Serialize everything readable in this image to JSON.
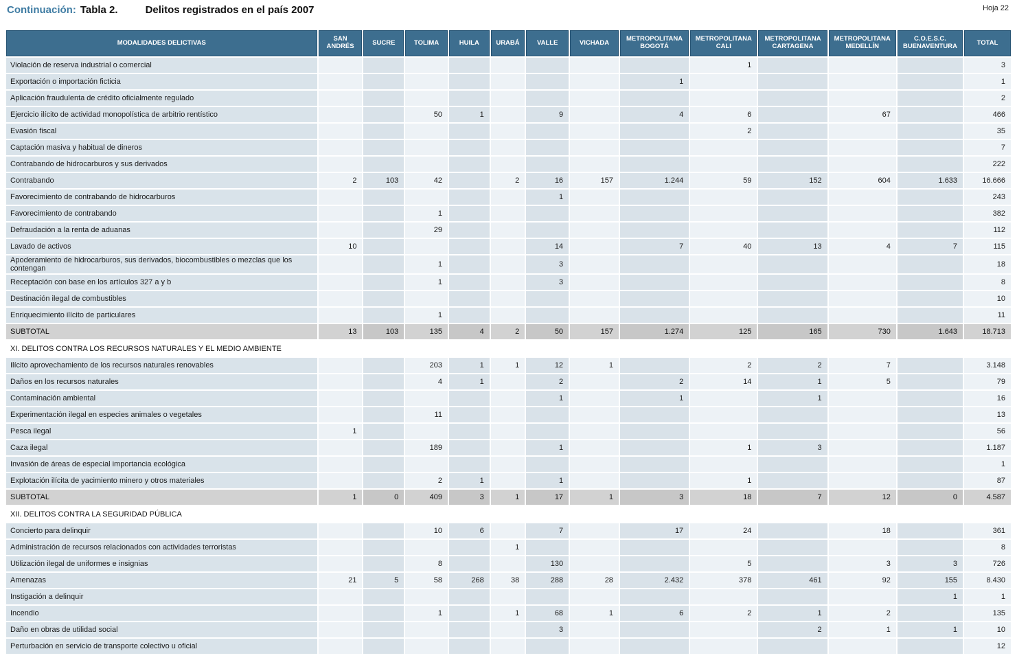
{
  "page": {
    "continuation_label": "Continuación:",
    "table_number": "Tabla 2.",
    "title": "Delitos registrados en el país 2007",
    "sheet": "Hoja 22"
  },
  "table": {
    "first_header": "MODALIDADES DELICTIVAS",
    "columns": [
      "SAN ANDRÉS",
      "SUCRE",
      "TOLIMA",
      "HUILA",
      "URABÁ",
      "VALLE",
      "VICHADA",
      "METROPOLITANA BOGOTÁ",
      "METROPOLITANA CALI",
      "METROPOLITANA CARTAGENA",
      "METROPOLITANA MEDELLÍN",
      "C.O.E.S.C. BUENAVENTURA",
      "TOTAL"
    ],
    "rows": [
      {
        "type": "data",
        "label": "Violación de reserva industrial o comercial",
        "values": [
          "",
          "",
          "",
          "",
          "",
          "",
          "",
          "",
          "1",
          "",
          "",
          "",
          "3"
        ]
      },
      {
        "type": "data",
        "label": "Exportación o importación ficticia",
        "values": [
          "",
          "",
          "",
          "",
          "",
          "",
          "",
          "1",
          "",
          "",
          "",
          "",
          "1"
        ]
      },
      {
        "type": "data",
        "label": "Aplicación fraudulenta de crédito oficialmente regulado",
        "values": [
          "",
          "",
          "",
          "",
          "",
          "",
          "",
          "",
          "",
          "",
          "",
          "",
          "2"
        ]
      },
      {
        "type": "data",
        "label": "Ejercicio ilícito de actividad monopolística de arbitrio rentístico",
        "values": [
          "",
          "",
          "50",
          "1",
          "",
          "9",
          "",
          "4",
          "6",
          "",
          "67",
          "",
          "466"
        ]
      },
      {
        "type": "data",
        "label": "Evasión fiscal",
        "values": [
          "",
          "",
          "",
          "",
          "",
          "",
          "",
          "",
          "2",
          "",
          "",
          "",
          "35"
        ]
      },
      {
        "type": "data",
        "label": "Captación masiva y habitual de dineros",
        "values": [
          "",
          "",
          "",
          "",
          "",
          "",
          "",
          "",
          "",
          "",
          "",
          "",
          "7"
        ]
      },
      {
        "type": "data",
        "label": "Contrabando de hidrocarburos y sus derivados",
        "values": [
          "",
          "",
          "",
          "",
          "",
          "",
          "",
          "",
          "",
          "",
          "",
          "",
          "222"
        ]
      },
      {
        "type": "data",
        "label": "Contrabando",
        "values": [
          "2",
          "103",
          "42",
          "",
          "2",
          "16",
          "157",
          "1.244",
          "59",
          "152",
          "604",
          "1.633",
          "16.666"
        ]
      },
      {
        "type": "data",
        "label": "Favorecimiento de contrabando de hidrocarburos",
        "values": [
          "",
          "",
          "",
          "",
          "",
          "1",
          "",
          "",
          "",
          "",
          "",
          "",
          "243"
        ]
      },
      {
        "type": "data",
        "label": "Favorecimiento de contrabando",
        "values": [
          "",
          "",
          "1",
          "",
          "",
          "",
          "",
          "",
          "",
          "",
          "",
          "",
          "382"
        ]
      },
      {
        "type": "data",
        "label": "Defraudación a la renta de aduanas",
        "values": [
          "",
          "",
          "29",
          "",
          "",
          "",
          "",
          "",
          "",
          "",
          "",
          "",
          "112"
        ]
      },
      {
        "type": "data",
        "label": "Lavado de activos",
        "values": [
          "10",
          "",
          "",
          "",
          "",
          "14",
          "",
          "7",
          "40",
          "13",
          "4",
          "7",
          "115"
        ]
      },
      {
        "type": "data",
        "label": "Apoderamiento de hidrocarburos, sus derivados, biocombustibles o mezclas que los contengan",
        "values": [
          "",
          "",
          "1",
          "",
          "",
          "3",
          "",
          "",
          "",
          "",
          "",
          "",
          "18"
        ]
      },
      {
        "type": "data",
        "label": "Receptación con base en los artículos 327 a y b",
        "values": [
          "",
          "",
          "1",
          "",
          "",
          "3",
          "",
          "",
          "",
          "",
          "",
          "",
          "8"
        ]
      },
      {
        "type": "data",
        "label": "Destinación ilegal de combustibles",
        "values": [
          "",
          "",
          "",
          "",
          "",
          "",
          "",
          "",
          "",
          "",
          "",
          "",
          "10"
        ]
      },
      {
        "type": "data",
        "label": "Enriquecimiento ilícito de particulares",
        "values": [
          "",
          "",
          "1",
          "",
          "",
          "",
          "",
          "",
          "",
          "",
          "",
          "",
          "11"
        ]
      },
      {
        "type": "subtotal",
        "label": "SUBTOTAL",
        "values": [
          "13",
          "103",
          "135",
          "4",
          "2",
          "50",
          "157",
          "1.274",
          "125",
          "165",
          "730",
          "1.643",
          "18.713"
        ]
      },
      {
        "type": "section",
        "label": "XI. DELITOS CONTRA LOS RECURSOS NATURALES Y EL MEDIO AMBIENTE"
      },
      {
        "type": "data",
        "label": "Ilícito aprovechamiento de los recursos naturales renovables",
        "values": [
          "",
          "",
          "203",
          "1",
          "1",
          "12",
          "1",
          "",
          "2",
          "2",
          "7",
          "",
          "3.148"
        ]
      },
      {
        "type": "data",
        "label": "Daños en los recursos naturales",
        "values": [
          "",
          "",
          "4",
          "1",
          "",
          "2",
          "",
          "2",
          "14",
          "1",
          "5",
          "",
          "79"
        ]
      },
      {
        "type": "data",
        "label": "Contaminación ambiental",
        "values": [
          "",
          "",
          "",
          "",
          "",
          "1",
          "",
          "1",
          "",
          "1",
          "",
          "",
          "16"
        ]
      },
      {
        "type": "data",
        "label": "Experimentación ilegal en especies animales o vegetales",
        "values": [
          "",
          "",
          "11",
          "",
          "",
          "",
          "",
          "",
          "",
          "",
          "",
          "",
          "13"
        ]
      },
      {
        "type": "data",
        "label": "Pesca ilegal",
        "values": [
          "1",
          "",
          "",
          "",
          "",
          "",
          "",
          "",
          "",
          "",
          "",
          "",
          "56"
        ]
      },
      {
        "type": "data",
        "label": "Caza ilegal",
        "values": [
          "",
          "",
          "189",
          "",
          "",
          "1",
          "",
          "",
          "1",
          "3",
          "",
          "",
          "1.187"
        ]
      },
      {
        "type": "data",
        "label": "Invasión de áreas de especial importancia ecológica",
        "values": [
          "",
          "",
          "",
          "",
          "",
          "",
          "",
          "",
          "",
          "",
          "",
          "",
          "1"
        ]
      },
      {
        "type": "data",
        "label": "Explotación ilícita de yacimiento minero y otros materiales",
        "values": [
          "",
          "",
          "2",
          "1",
          "",
          "1",
          "",
          "",
          "1",
          "",
          "",
          "",
          "87"
        ]
      },
      {
        "type": "subtotal",
        "label": "SUBTOTAL",
        "values": [
          "1",
          "0",
          "409",
          "3",
          "1",
          "17",
          "1",
          "3",
          "18",
          "7",
          "12",
          "0",
          "4.587"
        ]
      },
      {
        "type": "section",
        "label": "XII. DELITOS CONTRA LA SEGURIDAD PÚBLICA"
      },
      {
        "type": "data",
        "label": "Concierto para delinquir",
        "values": [
          "",
          "",
          "10",
          "6",
          "",
          "7",
          "",
          "17",
          "24",
          "",
          "18",
          "",
          "361"
        ]
      },
      {
        "type": "data",
        "label": "Administración de recursos relacionados con actividades terroristas",
        "values": [
          "",
          "",
          "",
          "",
          "1",
          "",
          "",
          "",
          "",
          "",
          "",
          "",
          "8"
        ]
      },
      {
        "type": "data",
        "label": "Utilización ilegal de uniformes e insignias",
        "values": [
          "",
          "",
          "8",
          "",
          "",
          "130",
          "",
          "",
          "5",
          "",
          "3",
          "3",
          "726"
        ]
      },
      {
        "type": "data",
        "label": "Amenazas",
        "values": [
          "21",
          "5",
          "58",
          "268",
          "38",
          "288",
          "28",
          "2.432",
          "378",
          "461",
          "92",
          "155",
          "8.430"
        ]
      },
      {
        "type": "data",
        "label": "Instigación a delinquir",
        "values": [
          "",
          "",
          "",
          "",
          "",
          "",
          "",
          "",
          "",
          "",
          "",
          "1",
          "1"
        ]
      },
      {
        "type": "data",
        "label": "Incendio",
        "values": [
          "",
          "",
          "1",
          "",
          "1",
          "68",
          "1",
          "6",
          "2",
          "1",
          "2",
          "",
          "135"
        ]
      },
      {
        "type": "data",
        "label": "Daño en obras de utilidad social",
        "values": [
          "",
          "",
          "",
          "",
          "",
          "3",
          "",
          "",
          "",
          "2",
          "1",
          "1",
          "10"
        ]
      },
      {
        "type": "data",
        "label": "Perturbación en servicio de transporte colectivo u oficial",
        "values": [
          "",
          "",
          "",
          "",
          "",
          "",
          "",
          "",
          "",
          "",
          "",
          "",
          "12"
        ]
      }
    ]
  }
}
